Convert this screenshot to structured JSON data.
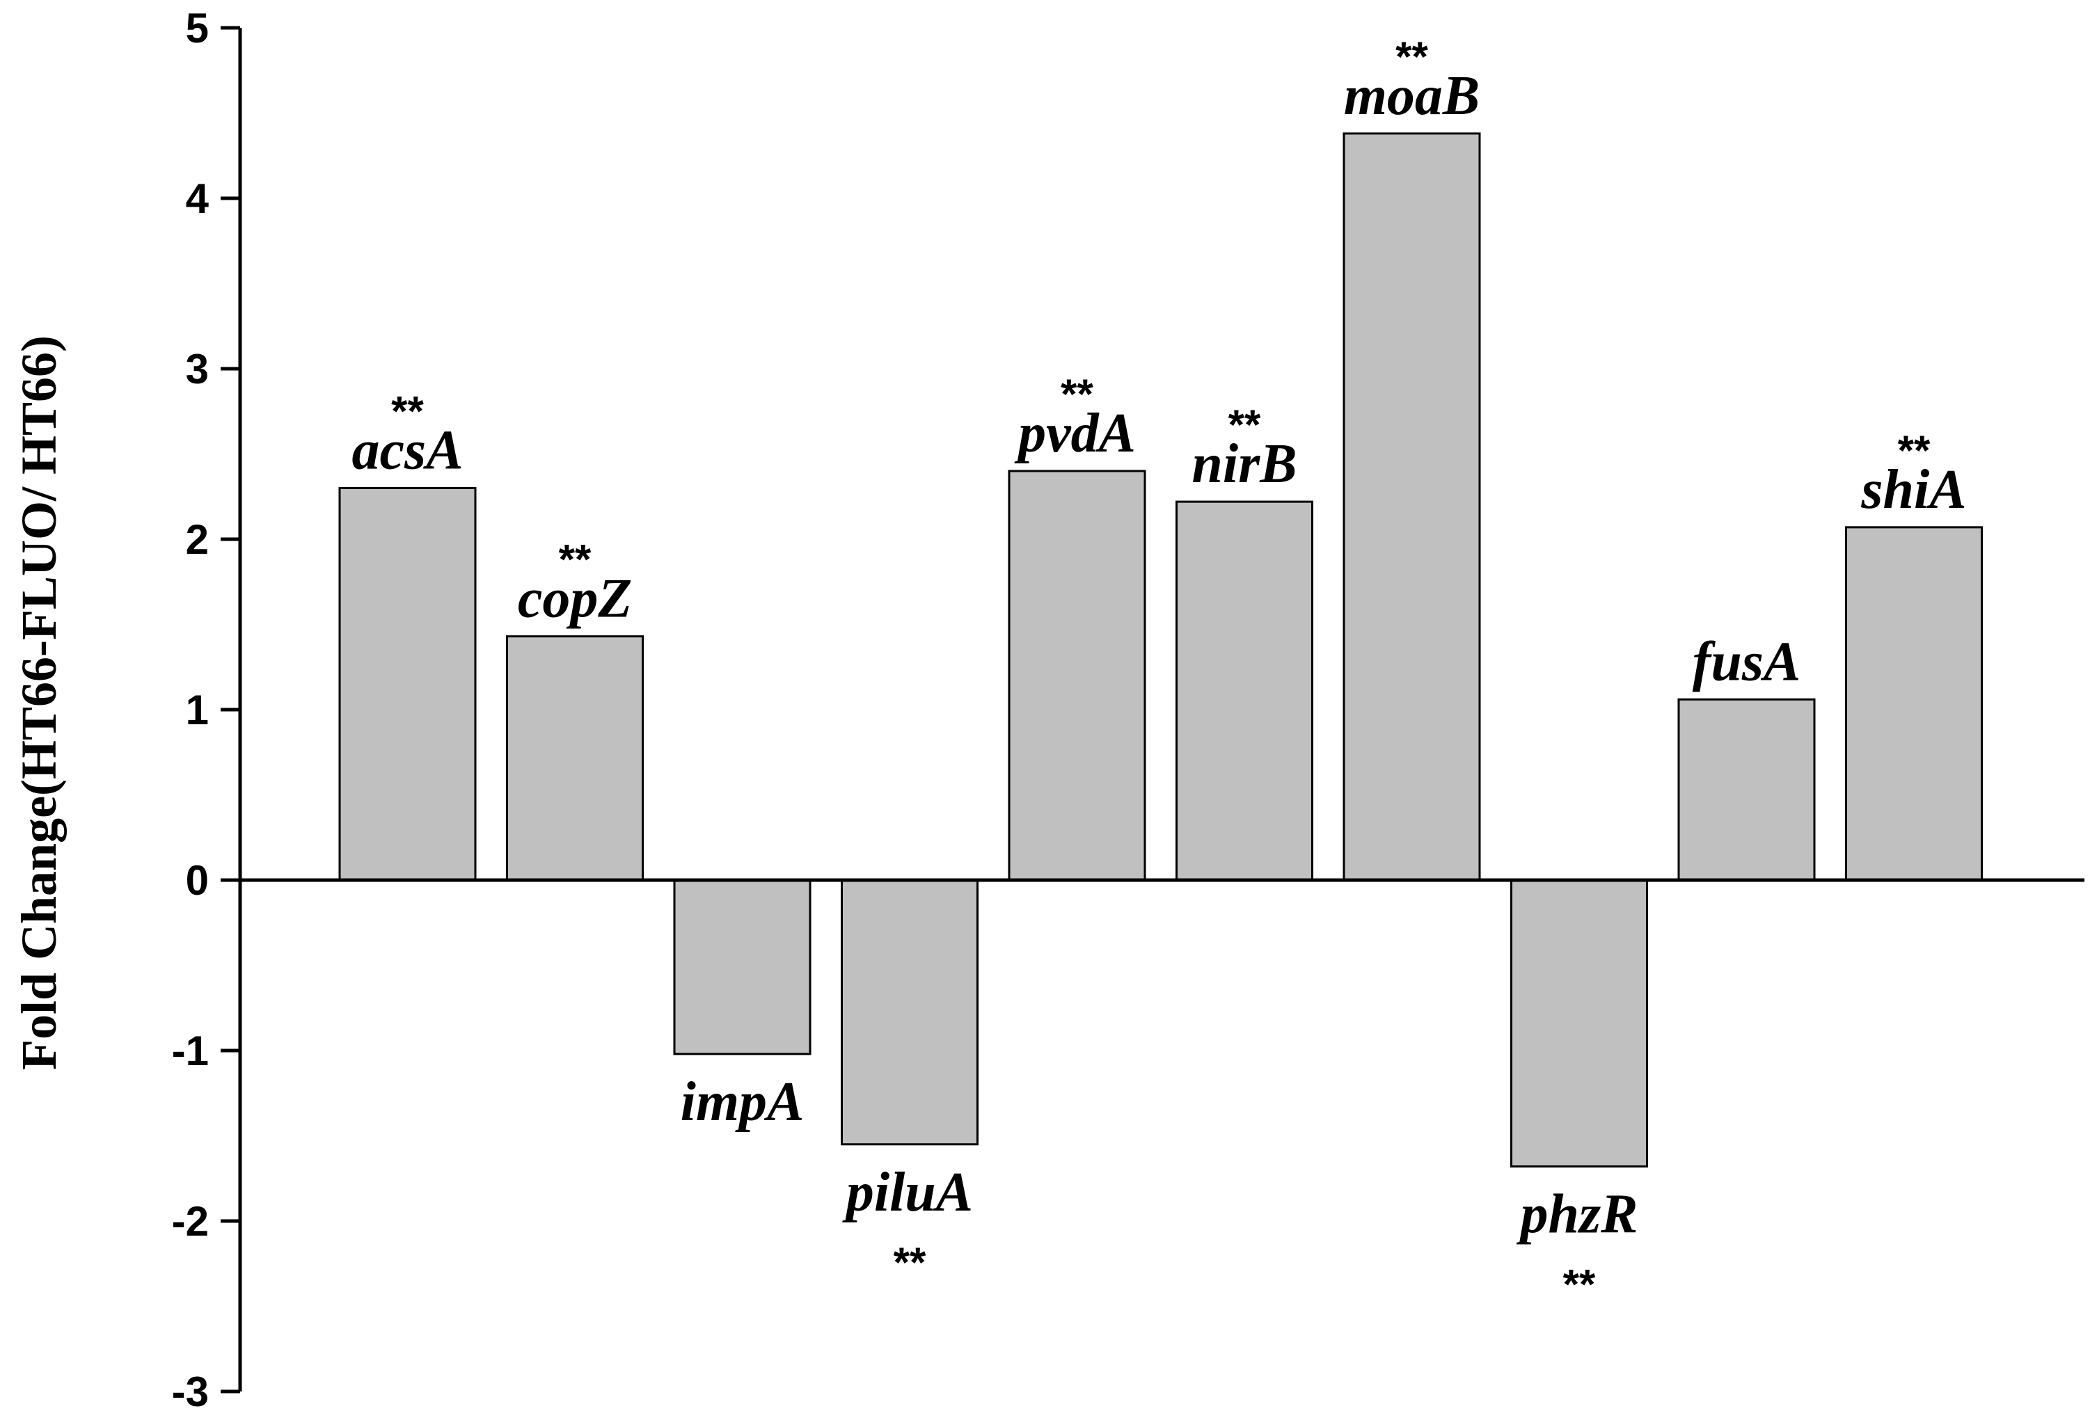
{
  "chart_data": {
    "type": "bar",
    "title": "",
    "xlabel": "",
    "ylabel": "Fold Change(HT66-FLUO/ HT66)",
    "ylim": [
      -3,
      5
    ],
    "yticks": [
      5,
      4,
      3,
      2,
      1,
      0,
      -1,
      -2,
      -3
    ],
    "grid": false,
    "bar_color": "#c0c0c0",
    "categories": [
      "acsA",
      "copZ",
      "impA",
      "piluA",
      "pvdA",
      "nirB",
      "moaB",
      "phzR",
      "fusA",
      "shiA"
    ],
    "values": [
      2.3,
      1.43,
      -1.02,
      -1.55,
      2.4,
      2.22,
      4.38,
      -1.68,
      1.06,
      2.07
    ],
    "significance": [
      "**",
      "**",
      "",
      "**",
      "**",
      "**",
      "**",
      "**",
      "",
      "**"
    ]
  }
}
